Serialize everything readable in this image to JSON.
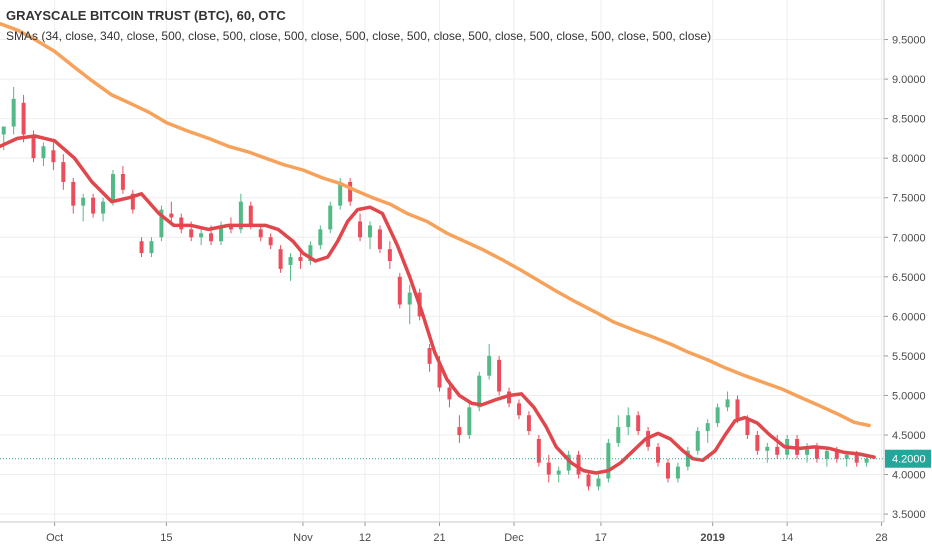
{
  "header": {
    "title": "GRAYSCALE BITCOIN TRUST (BTC), 60, OTC",
    "indicator": "SMAs (34, close, 340, close, 500, close, 500, close, 500, close, 500, close, 500, close, 500, close, 500, close, 500, close, 500, close)"
  },
  "colors": {
    "background": "#ffffff",
    "grid": "#eeeeee",
    "sma_fast": "#e0474c",
    "sma_slow": "#f7a25a",
    "candle_up": "#53b987",
    "candle_down": "#eb4d5c",
    "last_price": "#26a69a",
    "axis_text": "#4a4a4a"
  },
  "chart_data": {
    "type": "line",
    "title": "GRAYSCALE BITCOIN TRUST (BTC), 60, OTC",
    "x_axis": {
      "tick_labels": [
        "Oct",
        "15",
        "Nov",
        "12",
        "21",
        "Dec",
        "17",
        "2019",
        "14",
        "28"
      ],
      "tick_positions": [
        2.0,
        6.5,
        12.0,
        14.5,
        17.5,
        20.5,
        24.0,
        28.5,
        31.5,
        35.3
      ]
    },
    "y_axis": {
      "range": [
        3.4,
        10.0
      ],
      "scale": "linear",
      "position": "right",
      "tick_labels": [
        "3.5000",
        "4.0000",
        "4.5000",
        "5.0000",
        "5.5000",
        "6.0000",
        "6.5000",
        "7.0000",
        "7.5000",
        "8.0000",
        "8.5000",
        "9.0000",
        "9.5000"
      ],
      "tick_values": [
        3.5,
        4.0,
        4.5,
        5.0,
        5.5,
        6.0,
        6.5,
        7.0,
        7.5,
        8.0,
        8.5,
        9.0,
        9.5
      ]
    },
    "x_range": [
      -0.2,
      35.4
    ],
    "grid": true,
    "last_price": {
      "value": 4.2,
      "label": "4.2000"
    },
    "series": [
      {
        "key": "sma_fast",
        "points": [
          [
            -0.2,
            8.15
          ],
          [
            0.5,
            8.25
          ],
          [
            1.2,
            8.28
          ],
          [
            2.0,
            8.22
          ],
          [
            2.8,
            8.0
          ],
          [
            3.5,
            7.7
          ],
          [
            4.3,
            7.45
          ],
          [
            5.0,
            7.5
          ],
          [
            5.5,
            7.55
          ],
          [
            6.2,
            7.3
          ],
          [
            6.8,
            7.15
          ],
          [
            7.5,
            7.15
          ],
          [
            8.2,
            7.1
          ],
          [
            9.0,
            7.15
          ],
          [
            9.8,
            7.15
          ],
          [
            10.5,
            7.15
          ],
          [
            11.0,
            7.1
          ],
          [
            11.6,
            6.95
          ],
          [
            12.0,
            6.8
          ],
          [
            12.5,
            6.7
          ],
          [
            13.0,
            6.75
          ],
          [
            13.4,
            6.95
          ],
          [
            13.8,
            7.2
          ],
          [
            14.2,
            7.35
          ],
          [
            14.7,
            7.38
          ],
          [
            15.2,
            7.3
          ],
          [
            15.8,
            6.9
          ],
          [
            16.3,
            6.5
          ],
          [
            16.8,
            6.05
          ],
          [
            17.3,
            5.55
          ],
          [
            17.8,
            5.2
          ],
          [
            18.3,
            5.0
          ],
          [
            18.8,
            4.9
          ],
          [
            19.2,
            4.88
          ],
          [
            19.8,
            4.95
          ],
          [
            20.3,
            5.0
          ],
          [
            20.8,
            5.02
          ],
          [
            21.3,
            4.85
          ],
          [
            21.8,
            4.6
          ],
          [
            22.2,
            4.35
          ],
          [
            22.8,
            4.15
          ],
          [
            23.3,
            4.05
          ],
          [
            23.8,
            4.02
          ],
          [
            24.3,
            4.05
          ],
          [
            24.8,
            4.15
          ],
          [
            25.3,
            4.3
          ],
          [
            25.8,
            4.45
          ],
          [
            26.3,
            4.52
          ],
          [
            26.8,
            4.45
          ],
          [
            27.3,
            4.3
          ],
          [
            27.7,
            4.2
          ],
          [
            28.1,
            4.18
          ],
          [
            28.6,
            4.3
          ],
          [
            29.0,
            4.5
          ],
          [
            29.4,
            4.68
          ],
          [
            29.8,
            4.72
          ],
          [
            30.3,
            4.65
          ],
          [
            30.8,
            4.5
          ],
          [
            31.4,
            4.35
          ],
          [
            32.0,
            4.33
          ],
          [
            32.6,
            4.35
          ],
          [
            33.2,
            4.33
          ],
          [
            33.8,
            4.28
          ],
          [
            34.4,
            4.26
          ],
          [
            35.0,
            4.22
          ]
        ]
      },
      {
        "key": "sma_slow",
        "points": [
          [
            -0.2,
            9.7
          ],
          [
            0.5,
            9.62
          ],
          [
            1.2,
            9.5
          ],
          [
            2.0,
            9.35
          ],
          [
            2.8,
            9.15
          ],
          [
            3.5,
            8.98
          ],
          [
            4.3,
            8.8
          ],
          [
            5.0,
            8.7
          ],
          [
            5.8,
            8.58
          ],
          [
            6.5,
            8.45
          ],
          [
            7.3,
            8.35
          ],
          [
            8.2,
            8.25
          ],
          [
            9.0,
            8.15
          ],
          [
            9.8,
            8.08
          ],
          [
            10.5,
            8.0
          ],
          [
            11.2,
            7.92
          ],
          [
            12.0,
            7.85
          ],
          [
            12.8,
            7.75
          ],
          [
            13.5,
            7.68
          ],
          [
            14.2,
            7.58
          ],
          [
            14.8,
            7.5
          ],
          [
            15.5,
            7.42
          ],
          [
            16.2,
            7.3
          ],
          [
            17.0,
            7.2
          ],
          [
            17.8,
            7.05
          ],
          [
            18.5,
            6.95
          ],
          [
            19.2,
            6.85
          ],
          [
            20.0,
            6.72
          ],
          [
            20.8,
            6.58
          ],
          [
            21.5,
            6.45
          ],
          [
            22.2,
            6.32
          ],
          [
            23.0,
            6.18
          ],
          [
            23.8,
            6.05
          ],
          [
            24.5,
            5.93
          ],
          [
            25.3,
            5.83
          ],
          [
            26.0,
            5.75
          ],
          [
            26.8,
            5.65
          ],
          [
            27.5,
            5.55
          ],
          [
            28.3,
            5.45
          ],
          [
            29.0,
            5.35
          ],
          [
            29.8,
            5.25
          ],
          [
            30.5,
            5.17
          ],
          [
            31.3,
            5.08
          ],
          [
            32.0,
            4.98
          ],
          [
            32.8,
            4.87
          ],
          [
            33.5,
            4.77
          ],
          [
            34.2,
            4.66
          ],
          [
            34.8,
            4.62
          ]
        ]
      }
    ],
    "candles": [
      [
        -0.05,
        8.3,
        8.4,
        8.1,
        8.4
      ],
      [
        0.35,
        8.4,
        8.9,
        8.3,
        8.75
      ],
      [
        0.75,
        8.7,
        8.8,
        8.2,
        8.3
      ],
      [
        1.15,
        8.3,
        8.35,
        7.95,
        8.0
      ],
      [
        1.55,
        8.0,
        8.2,
        7.9,
        8.15
      ],
      [
        1.95,
        8.1,
        8.2,
        7.85,
        7.95
      ],
      [
        2.35,
        7.95,
        8.05,
        7.6,
        7.7
      ],
      [
        2.75,
        7.7,
        7.75,
        7.3,
        7.4
      ],
      [
        3.15,
        7.4,
        7.55,
        7.2,
        7.5
      ],
      [
        3.55,
        7.5,
        7.55,
        7.25,
        7.3
      ],
      [
        3.95,
        7.3,
        7.5,
        7.2,
        7.45
      ],
      [
        4.35,
        7.45,
        7.85,
        7.4,
        7.8
      ],
      [
        4.75,
        7.8,
        7.9,
        7.55,
        7.6
      ],
      [
        5.15,
        7.55,
        7.6,
        7.3,
        7.35
      ],
      [
        5.5,
        6.95,
        7.0,
        6.75,
        6.8
      ],
      [
        5.9,
        6.8,
        7.0,
        6.75,
        6.95
      ],
      [
        6.3,
        7.0,
        7.4,
        6.95,
        7.35
      ],
      [
        6.7,
        7.3,
        7.45,
        7.15,
        7.25
      ],
      [
        7.1,
        7.25,
        7.3,
        7.05,
        7.1
      ],
      [
        7.5,
        7.1,
        7.2,
        6.95,
        7.0
      ],
      [
        7.9,
        7.0,
        7.1,
        6.9,
        7.05
      ],
      [
        8.3,
        7.05,
        7.15,
        6.9,
        6.95
      ],
      [
        8.7,
        6.95,
        7.2,
        6.9,
        7.15
      ],
      [
        9.1,
        7.15,
        7.25,
        7.05,
        7.1
      ],
      [
        9.5,
        7.1,
        7.55,
        7.05,
        7.45
      ],
      [
        9.9,
        7.4,
        7.45,
        7.1,
        7.15
      ],
      [
        10.3,
        7.1,
        7.15,
        6.95,
        7.0
      ],
      [
        10.7,
        7.0,
        7.05,
        6.85,
        6.9
      ],
      [
        11.1,
        6.85,
        6.9,
        6.55,
        6.6
      ],
      [
        11.5,
        6.65,
        6.8,
        6.45,
        6.75
      ],
      [
        11.9,
        6.75,
        6.85,
        6.6,
        6.7
      ],
      [
        12.3,
        6.7,
        6.95,
        6.65,
        6.9
      ],
      [
        12.7,
        6.9,
        7.15,
        6.85,
        7.1
      ],
      [
        13.1,
        7.1,
        7.45,
        7.05,
        7.4
      ],
      [
        13.5,
        7.4,
        7.75,
        7.35,
        7.7
      ],
      [
        13.9,
        7.7,
        7.75,
        7.4,
        7.45
      ],
      [
        14.3,
        7.2,
        7.3,
        6.95,
        7.0
      ],
      [
        14.7,
        7.0,
        7.2,
        6.85,
        7.15
      ],
      [
        15.1,
        7.1,
        7.15,
        6.8,
        6.85
      ],
      [
        15.5,
        6.85,
        6.95,
        6.6,
        6.7
      ],
      [
        15.9,
        6.5,
        6.55,
        6.1,
        6.15
      ],
      [
        16.3,
        6.15,
        6.4,
        5.9,
        6.3
      ],
      [
        16.7,
        6.3,
        6.35,
        5.95,
        6.0
      ],
      [
        17.1,
        5.6,
        5.65,
        5.3,
        5.4
      ],
      [
        17.5,
        5.4,
        5.5,
        5.05,
        5.1
      ],
      [
        17.9,
        5.1,
        5.2,
        4.85,
        4.95
      ],
      [
        18.3,
        4.6,
        4.75,
        4.4,
        4.5
      ],
      [
        18.7,
        4.5,
        4.9,
        4.45,
        4.85
      ],
      [
        19.1,
        4.85,
        5.3,
        4.8,
        5.25
      ],
      [
        19.5,
        5.25,
        5.65,
        5.2,
        5.5
      ],
      [
        19.9,
        5.45,
        5.5,
        5.0,
        5.05
      ],
      [
        20.3,
        5.05,
        5.1,
        4.85,
        4.9
      ],
      [
        20.7,
        4.9,
        4.95,
        4.7,
        4.75
      ],
      [
        21.1,
        4.75,
        4.8,
        4.5,
        4.55
      ],
      [
        21.5,
        4.45,
        4.5,
        4.1,
        4.15
      ],
      [
        21.9,
        4.15,
        4.25,
        3.9,
        4.0
      ],
      [
        22.3,
        4.0,
        4.1,
        3.9,
        4.05
      ],
      [
        22.7,
        4.05,
        4.3,
        4.0,
        4.25
      ],
      [
        23.1,
        4.25,
        4.3,
        3.95,
        4.0
      ],
      [
        23.5,
        4.0,
        4.05,
        3.8,
        3.85
      ],
      [
        23.9,
        3.85,
        4.0,
        3.8,
        3.95
      ],
      [
        24.3,
        3.95,
        4.45,
        3.9,
        4.4
      ],
      [
        24.7,
        4.4,
        4.75,
        4.35,
        4.6
      ],
      [
        25.1,
        4.6,
        4.85,
        4.5,
        4.75
      ],
      [
        25.5,
        4.75,
        4.8,
        4.5,
        4.55
      ],
      [
        25.9,
        4.55,
        4.6,
        4.3,
        4.35
      ],
      [
        26.3,
        4.35,
        4.4,
        4.1,
        4.15
      ],
      [
        26.7,
        4.15,
        4.2,
        3.9,
        3.95
      ],
      [
        27.1,
        3.95,
        4.15,
        3.9,
        4.1
      ],
      [
        27.5,
        4.1,
        4.35,
        4.05,
        4.3
      ],
      [
        27.9,
        4.3,
        4.6,
        4.25,
        4.55
      ],
      [
        28.3,
        4.55,
        4.7,
        4.4,
        4.65
      ],
      [
        28.7,
        4.65,
        4.9,
        4.6,
        4.85
      ],
      [
        29.1,
        4.85,
        5.05,
        4.8,
        4.95
      ],
      [
        29.5,
        4.95,
        5.0,
        4.65,
        4.7
      ],
      [
        29.9,
        4.7,
        4.75,
        4.45,
        4.5
      ],
      [
        30.3,
        4.5,
        4.55,
        4.25,
        4.3
      ],
      [
        30.7,
        4.3,
        4.4,
        4.15,
        4.35
      ],
      [
        31.1,
        4.35,
        4.5,
        4.2,
        4.25
      ],
      [
        31.5,
        4.25,
        4.5,
        4.2,
        4.45
      ],
      [
        31.9,
        4.45,
        4.5,
        4.2,
        4.25
      ],
      [
        32.3,
        4.25,
        4.4,
        4.15,
        4.35
      ],
      [
        32.7,
        4.35,
        4.4,
        4.15,
        4.2
      ],
      [
        33.1,
        4.2,
        4.35,
        4.1,
        4.3
      ],
      [
        33.5,
        4.3,
        4.35,
        4.15,
        4.2
      ],
      [
        33.9,
        4.2,
        4.3,
        4.1,
        4.25
      ],
      [
        34.3,
        4.25,
        4.3,
        4.1,
        4.15
      ],
      [
        34.7,
        4.15,
        4.25,
        4.1,
        4.2
      ]
    ]
  }
}
